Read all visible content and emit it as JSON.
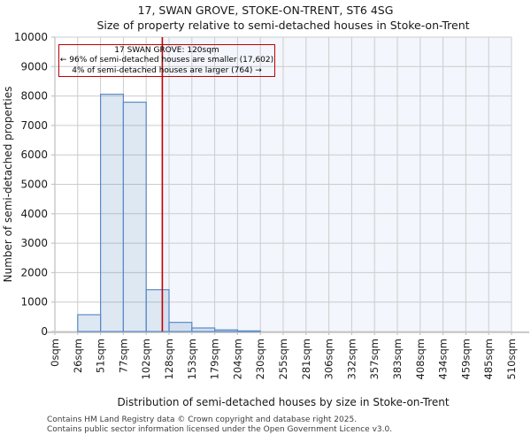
{
  "header": {
    "title": "17, SWAN GROVE, STOKE-ON-TRENT, ST6 4SG",
    "subtitle": "Size of property relative to semi-detached houses in Stoke-on-Trent"
  },
  "annotation": {
    "line1": "17 SWAN GROVE: 120sqm",
    "line2": "← 96% of semi-detached houses are smaller (17,602)",
    "line3": "4% of semi-detached houses are larger (764) →"
  },
  "footer": {
    "line1": "Contains HM Land Registry data © Crown copyright and database right 2025.",
    "line2": "Contains public sector information licensed under the Open Government Licence v3.0."
  },
  "chart_data": {
    "type": "bar",
    "title": "17, SWAN GROVE, STOKE-ON-TRENT, ST6 4SG",
    "subtitle": "Size of property relative to semi-detached houses in Stoke-on-Trent",
    "xlabel": "Distribution of semi-detached houses by size in Stoke-on-Trent",
    "ylabel": "Number of semi-detached properties",
    "categories": [
      "0sqm",
      "26sqm",
      "51sqm",
      "77sqm",
      "102sqm",
      "128sqm",
      "153sqm",
      "179sqm",
      "204sqm",
      "230sqm",
      "255sqm",
      "281sqm",
      "306sqm",
      "332sqm",
      "357sqm",
      "383sqm",
      "408sqm",
      "434sqm",
      "459sqm",
      "485sqm",
      "510sqm"
    ],
    "values": [
      0,
      570,
      8060,
      7790,
      1420,
      310,
      120,
      55,
      20,
      0,
      0,
      0,
      0,
      0,
      0,
      0,
      0,
      0,
      0,
      0
    ],
    "ylim": [
      0,
      10000
    ],
    "yticks": [
      0,
      1000,
      2000,
      3000,
      4000,
      5000,
      6000,
      7000,
      8000,
      9000,
      10000
    ],
    "xmax_sqm": 510,
    "bin_width_sqm": 25.5,
    "grid": true,
    "legend": false,
    "marker": {
      "label": "17 SWAN GROVE",
      "value_sqm": 120,
      "smaller_pct": 96,
      "smaller_count": 17602,
      "larger_pct": 4,
      "larger_count": 764
    },
    "colors": {
      "bar_edge": "#5b8ac5",
      "bar_fill_rgba": "rgba(91,138,197,0.2)",
      "marker_line": "#bf0000",
      "annotation_border": "#bf0000",
      "shade_right_of_marker": "#f3f6fc",
      "grid": "#cccccc",
      "spine": "#c4c4c4",
      "tick_text": "#1a1a1a"
    }
  }
}
